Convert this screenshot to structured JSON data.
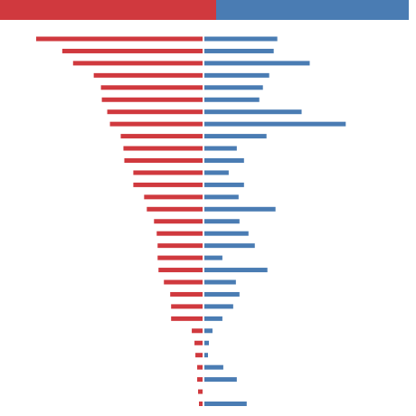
{
  "colors": {
    "left": "#d0393e",
    "right": "#4a7cb3",
    "header_left": "#d0393e",
    "header_right": "#4a7cb3"
  },
  "header": {
    "left_label": "",
    "right_label": ""
  },
  "chart_data": {
    "type": "bar",
    "orientation": "diverging-horizontal",
    "title": "",
    "xlabel": "",
    "ylabel": "",
    "grid": false,
    "legend": "none",
    "xlim_left": [
      0,
      185
    ],
    "xlim_right": [
      0,
      227
    ],
    "series": [
      {
        "side": "left",
        "values": [
          185,
          156,
          144,
          121,
          113,
          112,
          106,
          103,
          91,
          88,
          87,
          77,
          77,
          65,
          62,
          54,
          51,
          50,
          50,
          49,
          43,
          36,
          35,
          35,
          12,
          9,
          8,
          6,
          6,
          5,
          4
        ]
      },
      {
        "side": "right",
        "values": [
          81,
          77,
          117,
          72,
          65,
          61,
          108,
          157,
          69,
          36,
          44,
          27,
          44,
          38,
          79,
          39,
          49,
          56,
          20,
          70,
          35,
          39,
          32,
          20,
          9,
          5,
          4,
          21,
          36,
          0,
          47
        ]
      }
    ]
  }
}
